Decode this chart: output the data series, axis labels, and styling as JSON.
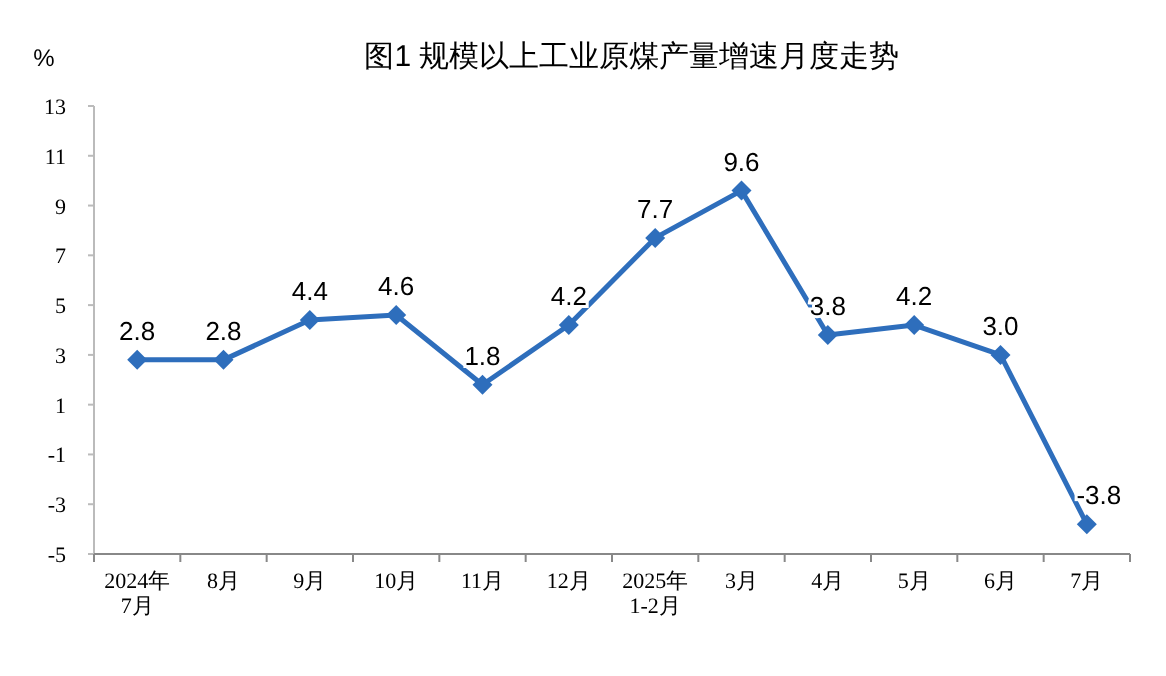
{
  "chart_data": {
    "type": "line",
    "title": "图1  规模以上工业原煤产量增速月度走势",
    "ylabel": "%",
    "categories": [
      "2024年\n7月",
      "8月",
      "9月",
      "10月",
      "11月",
      "12月",
      "2025年\n1-2月",
      "3月",
      "4月",
      "5月",
      "6月",
      "7月"
    ],
    "series": [
      {
        "color": "#2e6ebc",
        "values": [
          2.8,
          2.8,
          4.4,
          4.6,
          1.8,
          4.2,
          7.7,
          9.6,
          3.8,
          4.2,
          3.0,
          -3.8
        ],
        "value_labels": [
          "2.8",
          "2.8",
          "4.4",
          "4.6",
          "1.8",
          "4.2",
          "7.7",
          "9.6",
          "3.8",
          "4.2",
          "3.0",
          "-3.8"
        ]
      }
    ],
    "ylim": [
      -5,
      13
    ],
    "yticks": [
      -5,
      -3,
      -1,
      1,
      3,
      5,
      7,
      9,
      11,
      13
    ],
    "marker": "diamond",
    "grid": false
  }
}
